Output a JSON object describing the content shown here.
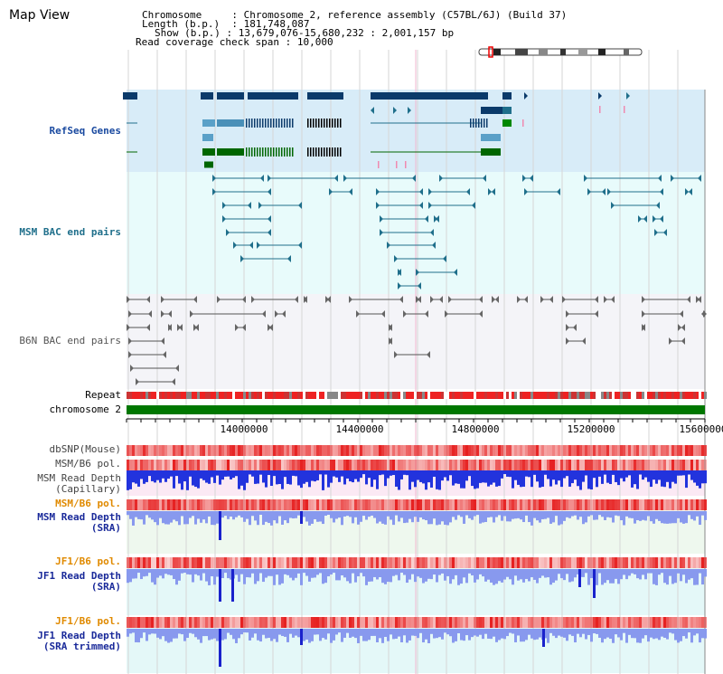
{
  "header": {
    "title": "Map View",
    "chromosome_label": "Chromosome",
    "chromosome_value": "Chromosome 2, reference assembly (C57BL/6J) (Build 37)",
    "length_label": "Length (b.p.)",
    "length_value": "181,748,087",
    "show_label": "Show (b.p.)",
    "show_value": "13,679,076-15,680,232 : 2,001,157 bp",
    "coverage_label": "Read coverage check span",
    "coverage_value": "10,000"
  },
  "tracks": {
    "refseq": "RefSeq Genes",
    "msm_bac": "MSM BAC end pairs",
    "b6n_bac": "B6N BAC end pairs",
    "repeat": "Repeat",
    "chromosome": "chromosome 2",
    "dbsnp": "dbSNP(Mouse)",
    "msm_b6_pol": "MSM/B6 pol.",
    "msm_read_cap_1": "MSM Read Depth",
    "msm_read_cap_2": "(Capillary)",
    "msm_b6_pol_2": "MSM/B6 pol.",
    "msm_read_sra_1": "MSM Read Depth",
    "msm_read_sra_2": "(SRA)",
    "jf1_b6_pol": "JF1/B6 pol.",
    "jf1_read_sra_1": "JF1 Read Depth",
    "jf1_read_sra_2": "(SRA)",
    "jf1_b6_pol_2": "JF1/B6 pol.",
    "jf1_read_trim_1": "JF1 Read Depth",
    "jf1_read_trim_2": "(SRA trimmed)"
  },
  "axis": {
    "ticks": [
      "14000000",
      "14400000",
      "14800000",
      "15200000",
      "15600000"
    ]
  },
  "colors": {
    "refseq_bg": "#d8ecf8",
    "bac_bg": "#e8fbfb",
    "b6n_bg": "#f4f4f8",
    "navy": "#0b3a6a",
    "teal": "#1f6f8b",
    "green": "#006600",
    "depth_blue": "#2233dd",
    "sra_blue": "#8899ee",
    "pol_red": "#ee2222"
  }
}
